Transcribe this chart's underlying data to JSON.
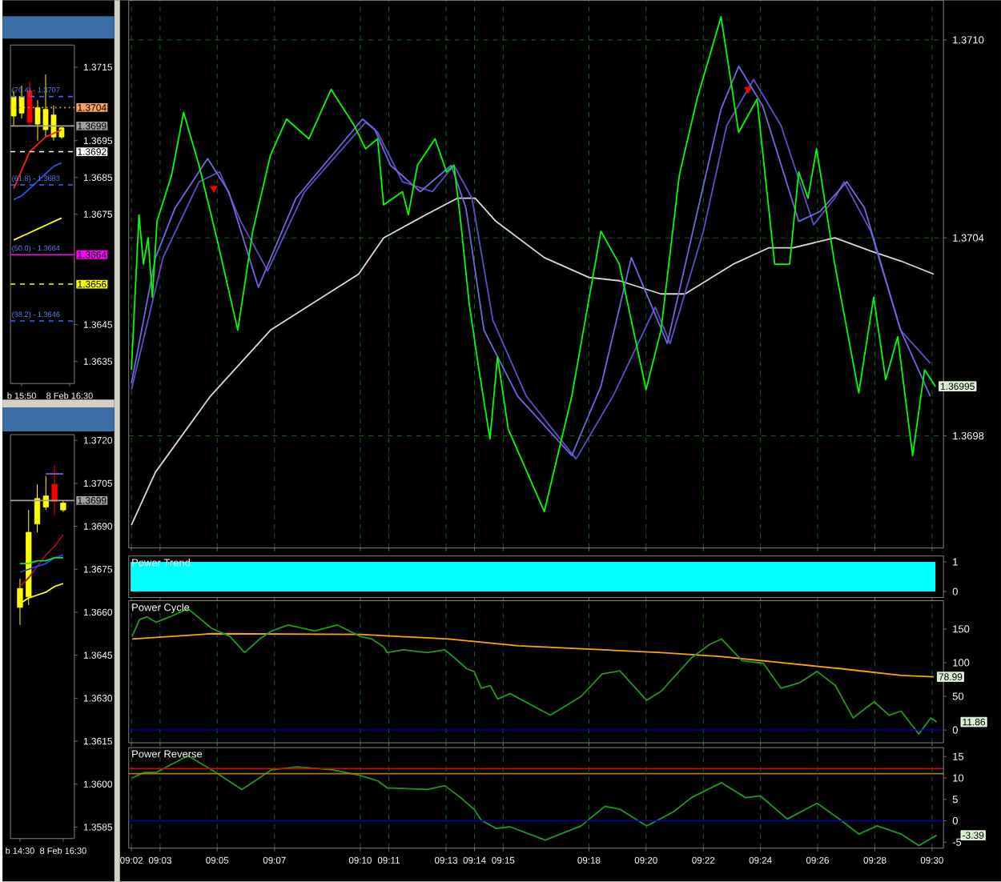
{
  "chart_data": [
    {
      "type": "line",
      "categories": [
        null,
        "b 15:50",
        null,
        null,
        null,
        null,
        null,
        "8 Feb 16:30"
      ],
      "ylim": [
        1.3629,
        1.3721
      ],
      "yticks": [
        1.3635,
        1.3645,
        1.3675,
        1.3685,
        1.3695,
        1.3715
      ],
      "series": [
        {
          "type": "candlestick",
          "ohlc": [
            [
              1.37017,
              1.37085,
              1.3699,
              1.3707
            ],
            [
              1.37025,
              1.371,
              1.3701,
              1.3707
            ],
            [
              1.37085,
              1.3711,
              1.3699,
              1.37
            ],
            [
              1.36995,
              1.3706,
              1.3695,
              1.3704
            ],
            [
              1.3698,
              1.3713,
              1.3696,
              1.37035
            ],
            [
              1.3696,
              1.37045,
              1.3695,
              1.3702
            ],
            [
              1.3696,
              1.3699,
              1.36955,
              1.36985
            ],
            null
          ],
          "colors": [
            "#ffff00",
            "#ffff00",
            "#ff0000",
            "#ffff00",
            "#ffff00",
            "#ffff00",
            "#ffff00",
            null
          ]
        },
        {
          "color": "#ff2020",
          "values": [
            1.3682,
            1.3687,
            1.3692,
            1.3694,
            1.3696,
            1.3697,
            1.3698,
            null
          ]
        },
        {
          "color": "#3050e0",
          "values": [
            1.3679,
            1.368,
            1.3682,
            1.3684,
            1.3686,
            1.3688,
            1.3689,
            null
          ]
        },
        {
          "color": "#ffff00",
          "values": [
            1.3668,
            1.3669,
            1.367,
            1.3671,
            1.3672,
            1.3673,
            1.3674,
            null
          ]
        }
      ],
      "ref_lines": [
        {
          "axis": "y",
          "value": 1.3707,
          "color": "#4060ff",
          "line_style": "dashed"
        },
        {
          "axis": "y",
          "value": 1.3704,
          "label": "1.3704",
          "color": "#f4a460",
          "line_style": "dotted"
        },
        {
          "axis": "y",
          "value": 1.3699,
          "label": "1.3699",
          "color": "#a0a0a0",
          "line_style": "solid"
        },
        {
          "axis": "y",
          "value": 1.3692,
          "label": "1.3692",
          "color": "#ffffff",
          "line_style": "dashed"
        },
        {
          "axis": "y",
          "value": 1.3683,
          "color": "#4060ff",
          "line_style": "dashed"
        },
        {
          "axis": "y",
          "value": 1.3664,
          "label": "1.3664",
          "color": "#ff00ff",
          "line_style": "solid"
        },
        {
          "axis": "y",
          "value": 1.3656,
          "label": "1.3656",
          "color": "#ffff00",
          "line_style": "dashed"
        },
        {
          "axis": "y",
          "value": 1.3646,
          "color": "#4060ff",
          "line_style": "dashed"
        }
      ],
      "annotations": [
        {
          "text": "(76.4) - 1.3707",
          "y": 1.3707
        },
        {
          "text": "(61.8) - 1.3683",
          "y": 1.3683
        },
        {
          "text": "(50.0) - 1.3664",
          "y": 1.3664
        },
        {
          "text": "(38.2) - 1.3646",
          "y": 1.3646
        }
      ]
    },
    {
      "type": "line",
      "categories": [
        "b 14:30",
        null,
        null,
        null,
        null,
        "8 Feb 16:30"
      ],
      "ylim": [
        1.3581,
        1.3722
      ],
      "yticks": [
        {
          "value": 1.372,
          "label": "1.3720"
        },
        1.3705,
        {
          "value": 1.369,
          "label": "1.3690"
        },
        1.3675,
        {
          "value": 1.366,
          "label": "1.3660"
        },
        1.3645,
        {
          "value": 1.363,
          "label": "1.3630"
        },
        1.3615,
        {
          "value": 1.36,
          "label": "1.3600"
        },
        1.3585
      ],
      "series": [
        {
          "type": "candlestick",
          "ohlc": [
            [
              1.36617,
              1.36717,
              1.36556,
              1.36683
            ],
            [
              1.36654,
              1.36957,
              1.36625,
              1.36879
            ],
            [
              1.36908,
              1.37046,
              1.36879,
              1.36997
            ],
            [
              1.36967,
              1.37075,
              1.36957,
              1.37006
            ],
            [
              1.37046,
              1.37112,
              1.36939,
              1.36987
            ],
            [
              1.36957,
              1.3699,
              1.3695,
              1.36981
            ]
          ],
          "colors": [
            "#ffff00",
            "#ffff00",
            "#ffff00",
            "#ffff00",
            "#ff0000",
            "#ffff00"
          ]
        },
        {
          "color": "#b040e0",
          "values": [
            null,
            null,
            null,
            1.37083,
            1.37083,
            1.37083
          ]
        },
        {
          "color": "#a01010",
          "values": [
            1.3669,
            1.3672,
            1.3676,
            1.368,
            1.3683,
            1.3687
          ]
        },
        {
          "color": "#2040ff",
          "values": [
            1.3674,
            1.3675,
            1.3676,
            1.3677,
            1.3679,
            1.368
          ]
        },
        {
          "color": "#20e020",
          "values": [
            1.3677,
            1.3677,
            1.3678,
            1.3678,
            1.3679,
            1.3679
          ]
        },
        {
          "color": "#ffff00",
          "values": [
            1.3663,
            1.3665,
            1.3666,
            1.3667,
            1.3669,
            1.367
          ]
        }
      ],
      "ref_lines": [
        {
          "axis": "y",
          "value": 1.3699,
          "label": "1.3699",
          "color": "#a0a0a0",
          "line_style": "solid"
        }
      ]
    },
    {
      "type": "line",
      "xlim": [
        9.0317,
        9.5067
      ],
      "xticks": [
        {
          "value": 9.0333,
          "label": null
        },
        {
          "value": 9.05,
          "label": null
        },
        {
          "value": 9.0833,
          "label": null
        },
        {
          "value": 9.1167,
          "label": null
        },
        {
          "value": 9.1667,
          "label": null
        },
        {
          "value": 9.1833,
          "label": null
        },
        {
          "value": 9.2167,
          "label": null
        },
        {
          "value": 9.2333,
          "label": null
        },
        {
          "value": 9.25,
          "label": null
        },
        {
          "value": 9.3,
          "label": null
        },
        {
          "value": 9.3333,
          "label": null
        },
        {
          "value": 9.3667,
          "label": null
        },
        {
          "value": 9.4,
          "label": null
        },
        {
          "value": 9.4333,
          "label": null
        },
        {
          "value": 9.4667,
          "label": null
        },
        {
          "value": 9.5,
          "label": null
        }
      ],
      "ylim": [
        1.36946,
        1.37112
      ],
      "yticks": [
        1.3698,
        1.3704,
        {
          "value": 1.371,
          "label": "1.3710"
        }
      ],
      "grid": true,
      "tick_labels": "y",
      "series": [
        {
          "color": "#d8d8d8",
          "x": [
            9.0333,
            9.0473,
            9.0793,
            9.1143,
            9.1657,
            9.1803,
            9.205,
            9.2232,
            9.2337,
            9.2458,
            9.274,
            9.3,
            9.3177,
            9.342,
            9.356,
            9.384,
            9.405,
            9.419,
            9.4433,
            9.4643,
            9.4817,
            9.501
          ],
          "values": [
            1.36953,
            1.36969,
            1.36992,
            1.37012,
            1.37029,
            1.3704,
            1.37047,
            1.37052,
            1.37052,
            1.37045,
            1.37034,
            1.37028,
            1.37027,
            1.37023,
            1.37023,
            1.37032,
            1.37037,
            1.37037,
            1.3704,
            1.37036,
            1.37033,
            1.37029
          ]
        },
        {
          "color": "#5a50c8",
          "x": [
            9.0333,
            9.0517,
            9.0727,
            9.0847,
            9.097,
            9.1127,
            9.1342,
            9.1698,
            9.1768,
            9.1913,
            9.2087,
            9.2213,
            9.2318,
            9.244,
            9.2635,
            9.2925,
            9.314,
            9.3387,
            9.3473,
            9.3667,
            9.3803,
            9.396,
            9.412,
            9.431,
            9.4433,
            9.4487,
            9.4643,
            9.4817,
            9.499
          ],
          "values": [
            1.36994,
            1.37034,
            1.37057,
            1.3706,
            1.37045,
            1.3703,
            1.37054,
            1.37075,
            1.37072,
            1.37057,
            1.37054,
            1.37062,
            1.37052,
            1.37015,
            1.36992,
            1.36973,
            1.36992,
            1.37019,
            1.37008,
            1.37042,
            1.37074,
            1.37088,
            1.37074,
            1.37044,
            1.37052,
            1.37057,
            1.37042,
            1.37012,
            1.37002
          ]
        },
        {
          "color": "#7068e0",
          "x": [
            9.0333,
            9.0473,
            9.0587,
            9.0777,
            9.09,
            9.1073,
            9.1292,
            9.168,
            9.175,
            9.1843,
            9.2017,
            9.2197,
            9.2283,
            9.2388,
            9.2585,
            9.29,
            9.307,
            9.3247,
            9.3457,
            9.3597,
            9.377,
            9.3873,
            9.4013,
            9.4223,
            9.4347,
            9.4503,
            9.4607,
            9.4817,
            9.499
          ],
          "values": [
            1.36996,
            1.37034,
            1.37049,
            1.37064,
            1.37054,
            1.37025,
            1.37052,
            1.37076,
            1.37073,
            1.37062,
            1.37054,
            1.37062,
            1.37049,
            1.37012,
            1.36992,
            1.36974,
            1.36995,
            1.37034,
            1.37008,
            1.3704,
            1.37079,
            1.37092,
            1.3708,
            1.37045,
            1.37048,
            1.37057,
            1.37049,
            1.37012,
            1.36992
          ]
        },
        {
          "color": "#00ff00",
          "x": [
            9.0333,
            9.0377,
            9.0403,
            9.043,
            9.0455,
            9.0482,
            9.0567,
            9.0637,
            9.0727,
            9.083,
            9.0953,
            9.104,
            9.1143,
            9.1237,
            9.1367,
            9.1497,
            9.1632,
            9.1698,
            9.1768,
            9.1803,
            9.1913,
            9.1947,
            9.2,
            9.2103,
            9.217,
            9.2213,
            9.2248,
            9.2302,
            9.2353,
            9.2423,
            9.2467,
            9.253,
            9.274,
            9.29,
            9.307,
            9.3177,
            9.3333,
            9.342,
            9.3527,
            9.363,
            9.377,
            9.3873,
            9.398,
            9.4083,
            9.417,
            9.4223,
            9.4277,
            9.4327,
            9.4433,
            9.4573,
            9.466,
            9.473,
            9.48,
            9.4887,
            9.4957,
            9.502
          ],
          "values": [
            1.37,
            1.37047,
            1.37032,
            1.3704,
            1.37022,
            1.37045,
            1.37059,
            1.37078,
            1.37062,
            1.3704,
            1.37012,
            1.37042,
            1.37065,
            1.37076,
            1.3707,
            1.37085,
            1.37074,
            1.37067,
            1.3707,
            1.3705,
            1.37054,
            1.37047,
            1.37062,
            1.3707,
            1.3706,
            1.37062,
            1.37047,
            1.3702,
            1.37002,
            1.36979,
            1.37004,
            1.36982,
            1.36957,
            1.36992,
            1.37042,
            1.37032,
            1.36994,
            1.37012,
            1.37059,
            1.37082,
            1.37107,
            1.37072,
            1.37082,
            1.37032,
            1.37032,
            1.3706,
            1.37052,
            1.37067,
            1.37032,
            1.36993,
            1.37022,
            1.36997,
            1.3701,
            1.36974,
            1.37,
            1.36995
          ]
        },
        {
          "type": "scatter",
          "marker": "triangle",
          "color": "#ff0000",
          "x": [
            9.0813,
            9.3927
          ],
          "values": [
            1.37055,
            1.37085
          ]
        }
      ],
      "annotations": [
        {
          "text": "1.36995",
          "x": 9.502,
          "y": 1.36995
        }
      ]
    },
    {
      "type": "area",
      "title": "Power Trend",
      "xlim": [
        9.0317,
        9.5067
      ],
      "xticks": [
        {
          "value": 9.0333,
          "label": null
        },
        {
          "value": 9.05,
          "label": null
        },
        {
          "value": 9.0833,
          "label": null
        },
        {
          "value": 9.1167,
          "label": null
        },
        {
          "value": 9.1667,
          "label": null
        },
        {
          "value": 9.1833,
          "label": null
        },
        {
          "value": 9.2167,
          "label": null
        },
        {
          "value": 9.2333,
          "label": null
        },
        {
          "value": 9.25,
          "label": null
        },
        {
          "value": 9.3,
          "label": null
        },
        {
          "value": 9.3333,
          "label": null
        },
        {
          "value": 9.3667,
          "label": null
        },
        {
          "value": 9.4,
          "label": null
        },
        {
          "value": 9.4333,
          "label": null
        },
        {
          "value": 9.4667,
          "label": null
        },
        {
          "value": 9.5,
          "label": null
        }
      ],
      "ylim": [
        -0.2,
        1.2
      ],
      "yticks": [
        0,
        1
      ],
      "tick_labels": "y",
      "series": [
        {
          "color": "#00ffff",
          "x": [
            9.0328,
            9.502
          ],
          "values": [
            1,
            1
          ]
        }
      ]
    },
    {
      "type": "line",
      "title": "Power Cycle",
      "xlim": [
        9.0317,
        9.5067
      ],
      "xticks": [
        {
          "value": 9.0333,
          "label": null
        },
        {
          "value": 9.05,
          "label": null
        },
        {
          "value": 9.0833,
          "label": null
        },
        {
          "value": 9.1167,
          "label": null
        },
        {
          "value": 9.1667,
          "label": null
        },
        {
          "value": 9.1833,
          "label": null
        },
        {
          "value": 9.2167,
          "label": null
        },
        {
          "value": 9.2333,
          "label": null
        },
        {
          "value": 9.25,
          "label": null
        },
        {
          "value": 9.3,
          "label": null
        },
        {
          "value": 9.3333,
          "label": null
        },
        {
          "value": 9.3667,
          "label": null
        },
        {
          "value": 9.4,
          "label": null
        },
        {
          "value": 9.4333,
          "label": null
        },
        {
          "value": 9.4667,
          "label": null
        },
        {
          "value": 9.5,
          "label": null
        }
      ],
      "ylim": [
        -19,
        192
      ],
      "yticks": [
        0,
        50,
        100,
        150
      ],
      "grid": "x",
      "tick_labels": "y",
      "series": [
        {
          "color": "#ffa500",
          "x": [
            9.0337,
            9.08,
            9.1667,
            9.2182,
            9.259,
            9.3423,
            9.3773,
            9.412,
            9.447,
            9.482,
            9.501
          ],
          "values": [
            135,
            143,
            142,
            135,
            125,
            115,
            109,
            100,
            91,
            81,
            78.99
          ]
        },
        {
          "color": "#1e9a1e",
          "x": [
            9.0337,
            9.038,
            9.0423,
            9.0477,
            9.0557,
            9.0663,
            9.08,
            9.0907,
            9.0993,
            9.108,
            9.115,
            9.1247,
            9.1402,
            9.1532,
            9.1667,
            9.1735,
            9.1805,
            9.1823,
            9.1917,
            9.2057,
            9.216,
            9.2217,
            9.2287,
            9.233,
            9.2373,
            9.2425,
            9.2468,
            9.254,
            9.2775,
            9.2955,
            9.3077,
            9.318,
            9.3337,
            9.3423,
            9.3597,
            9.3703,
            9.3773,
            9.3893,
            9.4017,
            9.412,
            9.4227,
            9.433,
            9.4437,
            9.454,
            9.4663,
            9.475,
            9.482,
            9.4923,
            9.4993,
            9.5027
          ],
          "values": [
            139,
            164,
            168,
            160,
            168,
            180,
            151,
            139,
            115,
            135,
            147,
            156,
            147,
            156,
            139,
            135,
            123,
            115,
            119,
            115,
            119,
            107,
            91,
            87,
            62,
            66,
            46,
            54,
            22,
            50,
            83,
            88,
            44,
            58,
            107,
            127,
            135,
            103,
            99,
            62,
            70,
            87,
            66,
            18,
            42,
            22,
            28,
            -6,
            18,
            11.86
          ]
        }
      ],
      "ref_lines": [
        {
          "axis": "y",
          "value": 0,
          "color": "#0000c0",
          "line_style": "solid"
        }
      ],
      "annotations": [
        {
          "text": "78.99",
          "x": 9.501,
          "y": 78.99
        },
        {
          "text": "11.86",
          "x": 9.5027,
          "y": 11.86
        }
      ]
    },
    {
      "type": "line",
      "title": "Power Reverse",
      "xlim": [
        9.0317,
        9.5067
      ],
      "xticks": [
        {
          "value": 9.0333,
          "label": "09:02"
        },
        {
          "value": 9.05,
          "label": "09:03"
        },
        {
          "value": 9.0833,
          "label": "09:05"
        },
        {
          "value": 9.1167,
          "label": "09:07"
        },
        {
          "value": 9.1667,
          "label": "09:10"
        },
        {
          "value": 9.1833,
          "label": "09:11"
        },
        {
          "value": 9.2167,
          "label": "09:13"
        },
        {
          "value": 9.2333,
          "label": "09:14"
        },
        {
          "value": 9.25,
          "label": "09:15"
        },
        {
          "value": 9.3,
          "label": "09:18"
        },
        {
          "value": 9.3333,
          "label": "09:20"
        },
        {
          "value": 9.3667,
          "label": "09:22"
        },
        {
          "value": 9.4,
          "label": "09:24"
        },
        {
          "value": 9.4333,
          "label": "09:26"
        },
        {
          "value": 9.4667,
          "label": "09:28"
        },
        {
          "value": 9.5,
          "label": "09:30"
        }
      ],
      "ylim": [
        -6.4,
        17.1
      ],
      "yticks": [
        -5,
        0,
        5,
        10,
        15
      ],
      "grid": "x",
      "series": [
        {
          "color": "#1e9a1e",
          "x": [
            9.0337,
            9.0407,
            9.0477,
            9.0663,
            9.08,
            9.0977,
            9.115,
            9.1297,
            9.1507,
            9.1667,
            9.177,
            9.1823,
            9.2057,
            9.216,
            9.2252,
            9.233,
            9.2373,
            9.246,
            9.254,
            9.2745,
            9.2955,
            9.3093,
            9.318,
            9.3337,
            9.3493,
            9.3597,
            9.3773,
            9.3913,
            9.4,
            9.4157,
            9.433,
            9.447,
            9.4573,
            9.468,
            9.482,
            9.4923,
            9.5027
          ],
          "values": [
            10,
            11.3,
            11.3,
            15.2,
            11.9,
            7.3,
            11.9,
            12.6,
            11.9,
            10.6,
            9.3,
            7.7,
            7.3,
            8.2,
            5.4,
            2.7,
            0.1,
            -1.8,
            -1.4,
            -4.5,
            -1.2,
            3.4,
            2.7,
            -1.2,
            2.1,
            5.4,
            8.9,
            5.4,
            5.8,
            0.4,
            4.1,
            0.1,
            -3.1,
            -1.2,
            -3.1,
            -5.8,
            -3.39
          ]
        }
      ],
      "ref_lines": [
        {
          "axis": "y",
          "value": 0,
          "color": "#0000c0",
          "line_style": "solid"
        },
        {
          "axis": "y",
          "value": 12.2,
          "color": "#e00000",
          "line_style": "solid"
        },
        {
          "axis": "y",
          "value": 11,
          "color": "#a08000",
          "line_style": "solid"
        }
      ],
      "annotations": [
        {
          "text": "-3.39",
          "x": 9.5027,
          "y": -3.39
        }
      ]
    }
  ]
}
